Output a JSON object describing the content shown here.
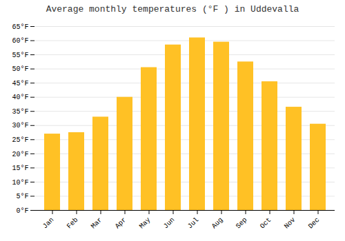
{
  "chart_data": {
    "type": "bar",
    "title": "Average monthly temperatures (°F ) in Uddevalla",
    "categories": [
      "Jan",
      "Feb",
      "Mar",
      "Apr",
      "May",
      "Jun",
      "Jul",
      "Aug",
      "Sep",
      "Oct",
      "Nov",
      "Dec"
    ],
    "values": [
      27,
      27.5,
      33,
      40,
      50.5,
      58.5,
      61,
      59.5,
      52.5,
      45.5,
      36.5,
      30.5
    ],
    "color": "#FFC125",
    "ylim": [
      0,
      65
    ],
    "yticks": [
      {
        "value": 0,
        "label": "0°F"
      },
      {
        "value": 5,
        "label": "5°F"
      },
      {
        "value": 10,
        "label": "10°F"
      },
      {
        "value": 15,
        "label": "15°F"
      },
      {
        "value": 20,
        "label": "20°F"
      },
      {
        "value": 25,
        "label": "25°F"
      },
      {
        "value": 30,
        "label": "30°F"
      },
      {
        "value": 35,
        "label": "35°F"
      },
      {
        "value": 40,
        "label": "40°F"
      },
      {
        "value": 45,
        "label": "45°F"
      },
      {
        "value": 50,
        "label": "50°F"
      },
      {
        "value": 55,
        "label": "55°F"
      },
      {
        "value": 60,
        "label": "60°F"
      },
      {
        "value": 65,
        "label": "65°F"
      }
    ],
    "grid": true
  }
}
